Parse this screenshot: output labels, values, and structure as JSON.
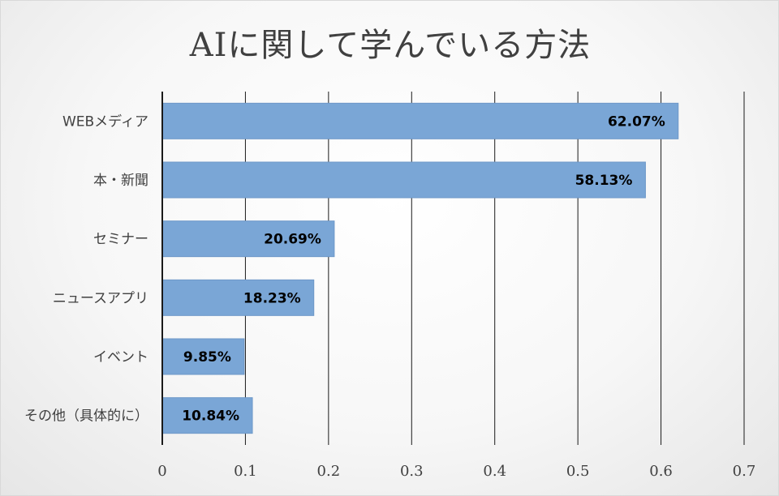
{
  "chart_data": {
    "type": "bar",
    "orientation": "horizontal",
    "title": "AIに関して学んでいる方法",
    "xlabel": "",
    "ylabel": "",
    "categories": [
      "WEBメディア",
      "本・新聞",
      "セミナー",
      "ニュースアプリ",
      "イベント",
      "その他（具体的に）"
    ],
    "values": [
      0.6207,
      0.5813,
      0.2069,
      0.1823,
      0.0985,
      0.1084
    ],
    "data_labels": [
      "62.07%",
      "58.13%",
      "20.69%",
      "18.23%",
      "9.85%",
      "10.84%"
    ],
    "xlim": [
      0,
      0.7
    ],
    "xticks": [
      "0",
      "0.1",
      "0.2",
      "0.3",
      "0.4",
      "0.5",
      "0.6",
      "0.7"
    ],
    "grid": true,
    "legend": "none",
    "colors": {
      "bar": "#7aa6d6",
      "bar_border": "#6e98c8",
      "grid": "#1a1a1a",
      "text": "#404040"
    }
  }
}
